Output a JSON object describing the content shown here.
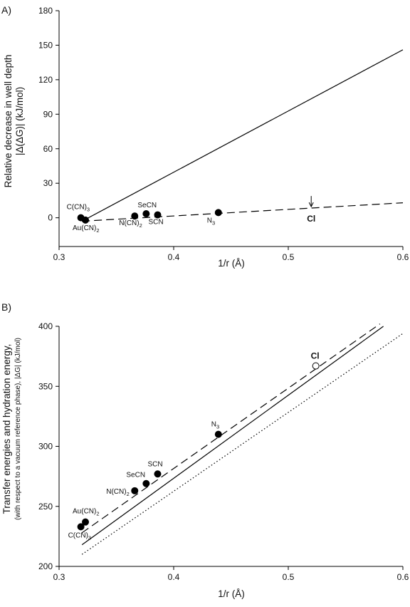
{
  "chart_data": [
    {
      "panel_label": "A)",
      "type": "scatter",
      "xlabel": "1/r (Å)",
      "ylabel_line1": "Relative decrease in well depth",
      "ylabel_line2": "|Δ(ΔG)|  (kJ/mol)",
      "xlim": [
        0.3,
        0.6
      ],
      "ylim": [
        -25,
        180
      ],
      "xticks": [
        "0.3",
        "0.4",
        "0.5",
        "0.6"
      ],
      "yticks": [
        "0",
        "30",
        "60",
        "90",
        "120",
        "150",
        "180"
      ],
      "grid": false,
      "points": [
        {
          "label": "C(CN)3",
          "x": 0.319,
          "y": 0
        },
        {
          "label": "Au(CN)2",
          "x": 0.323,
          "y": -2
        },
        {
          "label": "N(CN)2",
          "x": 0.366,
          "y": 1.5
        },
        {
          "label": "SeCN",
          "x": 0.376,
          "y": 3.5
        },
        {
          "label": "SCN",
          "x": 0.386,
          "y": 2.5
        },
        {
          "label": "N3",
          "x": 0.439,
          "y": 4.5
        }
      ],
      "lines": [
        {
          "style": "solid",
          "x": [
            0.32,
            0.6
          ],
          "y": [
            -3,
            146
          ]
        },
        {
          "style": "dashed",
          "x": [
            0.32,
            0.6
          ],
          "y": [
            -3,
            13
          ]
        }
      ],
      "annotations": [
        {
          "text": "Cl",
          "x": 0.52,
          "y": 9,
          "arrow": "down"
        }
      ]
    },
    {
      "panel_label": "B)",
      "type": "scatter",
      "xlabel": "1/r (Å)",
      "ylabel_line1": "Transfer energies and hydration energy,",
      "ylabel_line2": "(with respect to a vacuum reference phase), |ΔG| (kJ/mol)",
      "xlim": [
        0.3,
        0.6
      ],
      "ylim": [
        200,
        400
      ],
      "xticks": [
        "0.3",
        "0.4",
        "0.5",
        "0.6"
      ],
      "yticks": [
        "200",
        "250",
        "300",
        "350",
        "400"
      ],
      "grid": false,
      "points": [
        {
          "label": "C(CN)3",
          "x": 0.319,
          "y": 233,
          "filled": true
        },
        {
          "label": "Au(CN)2",
          "x": 0.323,
          "y": 237,
          "filled": true
        },
        {
          "label": "N(CN)2",
          "x": 0.366,
          "y": 263,
          "filled": true
        },
        {
          "label": "SeCN",
          "x": 0.376,
          "y": 269,
          "filled": true
        },
        {
          "label": "SCN",
          "x": 0.386,
          "y": 277,
          "filled": true
        },
        {
          "label": "N3",
          "x": 0.439,
          "y": 310,
          "filled": true
        },
        {
          "label": "Cl",
          "x": 0.524,
          "y": 367,
          "filled": false
        }
      ],
      "lines": [
        {
          "style": "dashed",
          "x": [
            0.32,
            0.58
          ],
          "y": [
            228,
            402
          ]
        },
        {
          "style": "solid",
          "x": [
            0.32,
            0.583
          ],
          "y": [
            218,
            400
          ]
        },
        {
          "style": "dotted",
          "x": [
            0.32,
            0.6
          ],
          "y": [
            210,
            394
          ]
        }
      ]
    }
  ]
}
